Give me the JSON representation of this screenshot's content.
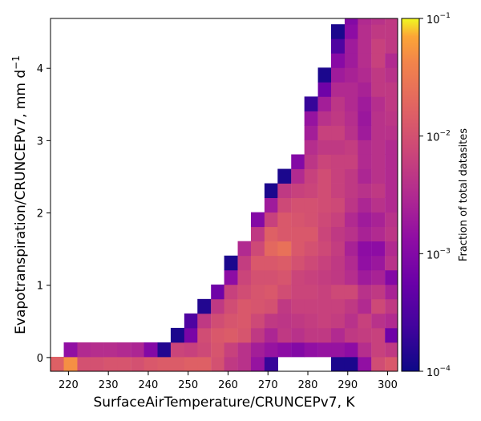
{
  "chart_data": {
    "type": "heatmap",
    "xlabel": "SurfaceAirTemperature/CRUNCEPv7,  K",
    "ylabel_main": "Evapotranspiration/CRUNCEPv7,  mm d",
    "ylabel_sup": "−1",
    "colorbar_label": "Fraction of total datasites",
    "color_scale": "log",
    "colormap": "plasma",
    "xlim": [
      215.5,
      302.5
    ],
    "ylim": [
      -0.19,
      4.69
    ],
    "x_ticks": [
      220,
      230,
      240,
      250,
      260,
      270,
      280,
      290,
      300
    ],
    "x_tick_labels": [
      "220",
      "230",
      "240",
      "250",
      "260",
      "270",
      "280",
      "290",
      "300"
    ],
    "y_ticks": [
      0,
      1,
      2,
      3,
      4
    ],
    "y_tick_labels": [
      "0",
      "1",
      "2",
      "3",
      "4"
    ],
    "colorbar_ticks": [
      {
        "base": "10",
        "exp": "−1",
        "value": 0.1
      },
      {
        "base": "10",
        "exp": "−2",
        "value": 0.01
      },
      {
        "base": "10",
        "exp": "−3",
        "value": 0.001
      },
      {
        "base": "10",
        "exp": "−4",
        "value": 0.0001
      }
    ],
    "vmin": 0.0001,
    "vmax": 0.1,
    "bin_x_start": 215.5,
    "bin_width_x": 3.35,
    "bin_y_start": -0.19,
    "bin_height_y": 0.2,
    "grid": false,
    "columns": [
      {
        "x": 217.2,
        "v": [
          -1.8
        ]
      },
      {
        "x": 220.5,
        "v": [
          -1.3,
          -2.85
        ]
      },
      {
        "x": 223.9,
        "v": [
          -2.0,
          -2.5
        ]
      },
      {
        "x": 227.2,
        "v": [
          -2.0,
          -2.45
        ]
      },
      {
        "x": 230.6,
        "v": [
          -1.95,
          -2.45
        ]
      },
      {
        "x": 233.9,
        "v": [
          -1.95,
          -2.5
        ]
      },
      {
        "x": 237.3,
        "v": [
          -2.0,
          -2.55
        ]
      },
      {
        "x": 240.6,
        "v": [
          -1.9,
          -3.0
        ]
      },
      {
        "x": 244.0,
        "v": [
          -1.85,
          -3.85
        ]
      },
      {
        "x": 247.3,
        "v": [
          -1.85,
          -2.15,
          -3.9
        ]
      },
      {
        "x": 250.7,
        "v": [
          -1.8,
          -2.2,
          -3.1,
          -3.5
        ]
      },
      {
        "x": 254.0,
        "v": [
          -1.8,
          -2.1,
          -2.05,
          -2.3,
          -3.85
        ]
      },
      {
        "x": 257.4,
        "v": [
          -2.0,
          -1.95,
          -1.9,
          -2.05,
          -2.3,
          -3.2
        ]
      },
      {
        "x": 260.7,
        "v": [
          -2.3,
          -2.2,
          -1.85,
          -1.95,
          -2.05,
          -2.2,
          -2.9,
          -3.9
        ]
      },
      {
        "x": 264.1,
        "v": [
          -2.4,
          -2.4,
          -1.95,
          -1.9,
          -1.9,
          -2.05,
          -2.15,
          -2.25,
          -2.5
        ]
      },
      {
        "x": 267.4,
        "v": [
          -2.8,
          -2.65,
          -2.3,
          -2.1,
          -1.95,
          -1.95,
          -2.0,
          -1.9,
          -2.1,
          -2.3,
          -3.0
        ]
      },
      {
        "x": 270.8,
        "v": [
          -3.7,
          -2.8,
          -2.55,
          -2.3,
          -2.0,
          -1.9,
          -2.0,
          -1.9,
          -1.7,
          -1.8,
          -2.2,
          -2.7,
          -3.9
        ]
      },
      {
        "x": 274.1,
        "v": [
          null,
          -2.9,
          -2.3,
          -2.35,
          -2.3,
          -2.05,
          -1.95,
          -1.85,
          -1.6,
          -1.9,
          -1.9,
          -2.1,
          -2.3,
          -3.9
        ]
      },
      {
        "x": 277.5,
        "v": [
          null,
          -3.0,
          -2.4,
          -2.3,
          -2.2,
          -2.15,
          -2.15,
          -2.0,
          -1.9,
          -1.9,
          -1.95,
          -2.0,
          -2.2,
          -2.5,
          -3.0
        ]
      },
      {
        "x": 280.8,
        "v": [
          null,
          -2.85,
          -2.3,
          -2.25,
          -2.2,
          -2.15,
          -2.2,
          -2.1,
          -2.0,
          -1.9,
          -2.0,
          -2.0,
          -2.15,
          -2.2,
          -2.35,
          -2.45,
          -2.65,
          -2.8,
          -3.7
        ]
      },
      {
        "x": 284.2,
        "v": [
          null,
          -2.8,
          -2.3,
          -2.2,
          -2.2,
          -2.2,
          -2.25,
          -2.2,
          -2.1,
          -2.15,
          -2.1,
          -2.05,
          -2.05,
          -2.05,
          -2.15,
          -2.3,
          -2.2,
          -2.4,
          -2.65,
          -3.2,
          -3.9
        ]
      },
      {
        "x": 287.5,
        "v": [
          -3.9,
          -2.8,
          -2.5,
          -2.25,
          -2.2,
          -2.1,
          -2.3,
          -2.3,
          -2.25,
          -2.3,
          -2.2,
          -2.1,
          -2.2,
          -2.2,
          -2.2,
          -2.3,
          -2.2,
          -2.3,
          -2.35,
          -2.5,
          -2.7,
          -2.95,
          -3.5,
          -3.9
        ]
      },
      {
        "x": 290.9,
        "v": [
          -3.9,
          -2.9,
          -2.3,
          -2.4,
          -2.3,
          -2.1,
          -2.45,
          -2.5,
          -2.6,
          -2.4,
          -2.5,
          -2.35,
          -2.3,
          -2.3,
          -2.2,
          -2.25,
          -2.4,
          -2.45,
          -2.5,
          -2.5,
          -2.6,
          -2.7,
          -2.7,
          -2.9,
          -3.0,
          -3.2,
          -3.4,
          -3.5,
          -3.8,
          -3.9,
          -3.9,
          null,
          -3.9,
          -3.9
        ]
      },
      {
        "x": 294.2,
        "v": [
          -2.85,
          -2.45,
          -2.25,
          -2.2,
          -2.5,
          -2.4,
          -2.7,
          -2.85,
          -2.9,
          -2.6,
          -2.7,
          -2.55,
          -2.4,
          -2.55,
          -2.5,
          -2.5,
          -2.7,
          -2.75,
          -2.7,
          -2.6,
          -2.5,
          -2.45,
          -2.45,
          -2.45,
          -2.5,
          -2.5,
          -2.6,
          -2.5,
          -2.7,
          -2.8,
          -3.0,
          -3.1,
          -2.9,
          -3.1,
          -3.2,
          -3.3,
          -3.5,
          -3.6,
          -3.7,
          -3.8,
          -3.95,
          -3.9
        ]
      },
      {
        "x": 297.6,
        "v": [
          -2.05,
          -2.2,
          -2.2,
          -2.4,
          -2.1,
          -2.3,
          -2.6,
          -2.75,
          -2.9,
          -2.5,
          -2.6,
          -2.4,
          -2.3,
          -2.4,
          -2.4,
          -2.4,
          -2.4,
          -2.4,
          -2.45,
          -2.3,
          -2.3,
          -2.2,
          -2.2,
          -2.3,
          -2.4,
          -2.3,
          -2.3,
          -2.3,
          -2.4,
          -2.4,
          -2.5,
          -2.4,
          -2.4,
          -2.5,
          -2.6,
          -2.6,
          -2.7,
          -2.6,
          -2.6,
          -2.5,
          -2.5,
          -2.4,
          -2.6,
          -2.5,
          -2.4,
          -2.5,
          -2.6,
          -2.7,
          -2.9,
          -3.0
        ]
      },
      {
        "x": 301.0,
        "v": [
          -1.9,
          -2.3,
          -3.2,
          -2.5,
          -2.3,
          -2.6,
          -3.0,
          -2.4,
          -2.5,
          -2.35,
          -2.4,
          -2.5,
          -2.5,
          -2.5,
          -2.5,
          -2.5,
          -2.4,
          -2.35,
          -2.3,
          -2.3,
          -2.4,
          -2.5,
          -2.3,
          -2.3,
          -2.3,
          -2.4,
          -2.3,
          -2.4,
          -2.3,
          -2.3,
          -2.3,
          -2.4,
          -2.4,
          -2.5,
          -2.4,
          -2.3,
          -2.2,
          -2.2,
          -2.3,
          -2.3,
          -2.2,
          -2.1,
          -2.2,
          -2.2,
          -2.3,
          -2.3,
          -2.4,
          -2.5,
          -2.6
        ]
      }
    ]
  }
}
